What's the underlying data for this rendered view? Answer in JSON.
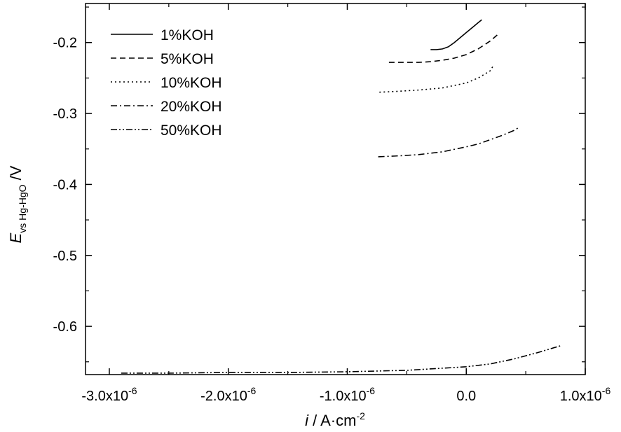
{
  "chart_data": {
    "type": "line",
    "title": "",
    "xlabel": {
      "prefix": "",
      "symbol": "i",
      "slash": " / ",
      "unit": "A·cm",
      "unit_sup": "-2"
    },
    "ylabel": {
      "symbol": "E",
      "subscript": "vs Hg-HgO",
      "unit": " /V"
    },
    "xlim": [
      -3.2e-06,
      1e-06
    ],
    "ylim": [
      -0.668,
      -0.145
    ],
    "xticks": [
      {
        "value": -3e-06,
        "mantissa": "-3.0x10",
        "exp": "-6"
      },
      {
        "value": -2e-06,
        "mantissa": "-2.0x10",
        "exp": "-6"
      },
      {
        "value": -1e-06,
        "mantissa": "-1.0x10",
        "exp": "-6"
      },
      {
        "value": 0.0,
        "mantissa": "0.0",
        "exp": ""
      },
      {
        "value": 1e-06,
        "mantissa": "1.0x10",
        "exp": "-6"
      }
    ],
    "yticks": [
      {
        "value": -0.2,
        "label": "-0.2"
      },
      {
        "value": -0.3,
        "label": "-0.3"
      },
      {
        "value": -0.4,
        "label": "-0.4"
      },
      {
        "value": -0.5,
        "label": "-0.5"
      },
      {
        "value": -0.6,
        "label": "-0.6"
      }
    ],
    "legend_position": "top-left",
    "series": [
      {
        "name": "1%KOH",
        "dash": "solid",
        "x": [
          -3e-07,
          -2.5e-07,
          -2e-07,
          -1.5e-07,
          -1e-07,
          -5e-08,
          0.0,
          5e-08,
          1e-07,
          1.3e-07
        ],
        "y": [
          -0.21,
          -0.21,
          -0.209,
          -0.206,
          -0.2,
          -0.193,
          -0.186,
          -0.179,
          -0.172,
          -0.168
        ]
      },
      {
        "name": "5%KOH",
        "dash": "dash",
        "x": [
          -6.5e-07,
          -5e-07,
          -4e-07,
          -3e-07,
          -2e-07,
          -1e-07,
          0.0,
          1e-07,
          2e-07,
          2.7e-07
        ],
        "y": [
          -0.228,
          -0.228,
          -0.228,
          -0.227,
          -0.225,
          -0.222,
          -0.217,
          -0.209,
          -0.198,
          -0.188
        ]
      },
      {
        "name": "10%KOH",
        "dash": "dot",
        "x": [
          -7.3e-07,
          -6e-07,
          -4e-07,
          -2e-07,
          0.0,
          1e-07,
          2e-07,
          2.3e-07
        ],
        "y": [
          -0.27,
          -0.269,
          -0.267,
          -0.264,
          -0.257,
          -0.25,
          -0.24,
          -0.232
        ]
      },
      {
        "name": "20%KOH",
        "dash": "dashdot",
        "x": [
          -7.4e-07,
          -6e-07,
          -4e-07,
          -2e-07,
          0.0,
          1e-07,
          2e-07,
          3e-07,
          4e-07,
          4.4e-07
        ],
        "y": [
          -0.361,
          -0.36,
          -0.358,
          -0.354,
          -0.347,
          -0.343,
          -0.337,
          -0.331,
          -0.324,
          -0.32
        ]
      },
      {
        "name": "50%KOH",
        "dash": "dashdotdot",
        "x": [
          -2.9e-06,
          -2.5e-06,
          -2e-06,
          -1.5e-06,
          -1e-06,
          -5e-07,
          0.0,
          2e-07,
          4e-07,
          6e-07,
          8e-07
        ],
        "y": [
          -0.666,
          -0.666,
          -0.665,
          -0.665,
          -0.664,
          -0.662,
          -0.657,
          -0.653,
          -0.646,
          -0.637,
          -0.627
        ]
      }
    ]
  }
}
